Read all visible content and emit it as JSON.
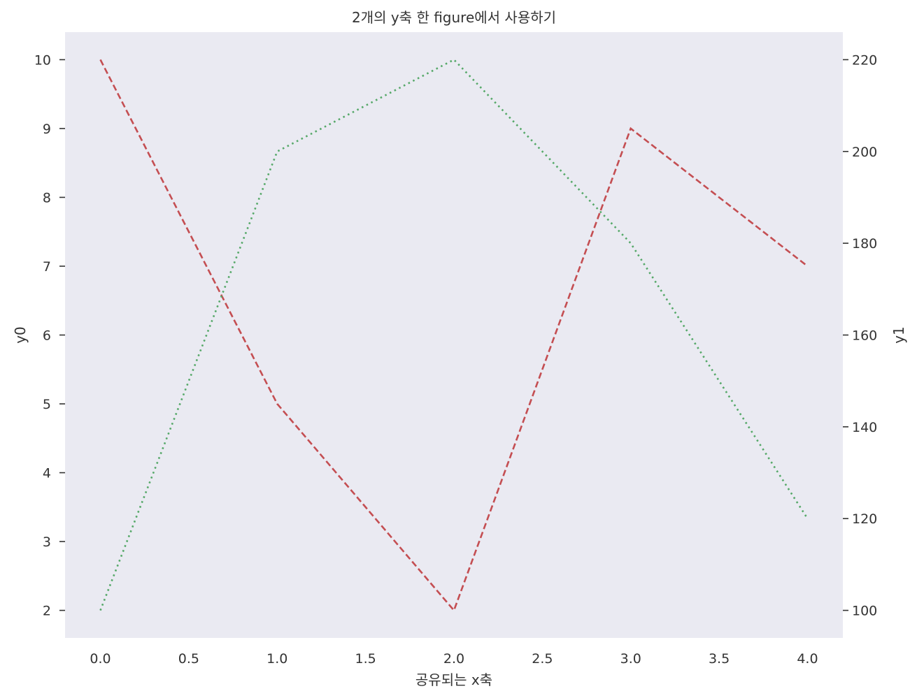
{
  "chart_data": {
    "type": "line",
    "title": "2개의 y축 한 figure에서 사용하기",
    "xlabel": "공유되는 x축",
    "ylabel_left": "y0",
    "ylabel_right": "y1",
    "x": [
      0,
      1,
      2,
      3,
      4
    ],
    "xlim": [
      -0.2,
      4.2
    ],
    "xticks": [
      "0.0",
      "0.5",
      "1.0",
      "1.5",
      "2.0",
      "2.5",
      "3.0",
      "3.5",
      "4.0"
    ],
    "ylim_left": [
      1.6,
      10.4
    ],
    "yticks_left": [
      "2",
      "3",
      "4",
      "5",
      "6",
      "7",
      "8",
      "9",
      "10"
    ],
    "ylim_right": [
      94,
      226
    ],
    "yticks_right": [
      "100",
      "120",
      "140",
      "160",
      "180",
      "200",
      "220"
    ],
    "grid": false,
    "background": "#eaeaf2",
    "series": [
      {
        "axis": "left",
        "values": [
          10,
          5,
          2,
          9,
          7
        ],
        "color": "#c44e52",
        "style": "dashed"
      },
      {
        "axis": "right",
        "values": [
          100,
          200,
          220,
          180,
          120
        ],
        "color": "#55a868",
        "style": "dotted"
      }
    ]
  }
}
